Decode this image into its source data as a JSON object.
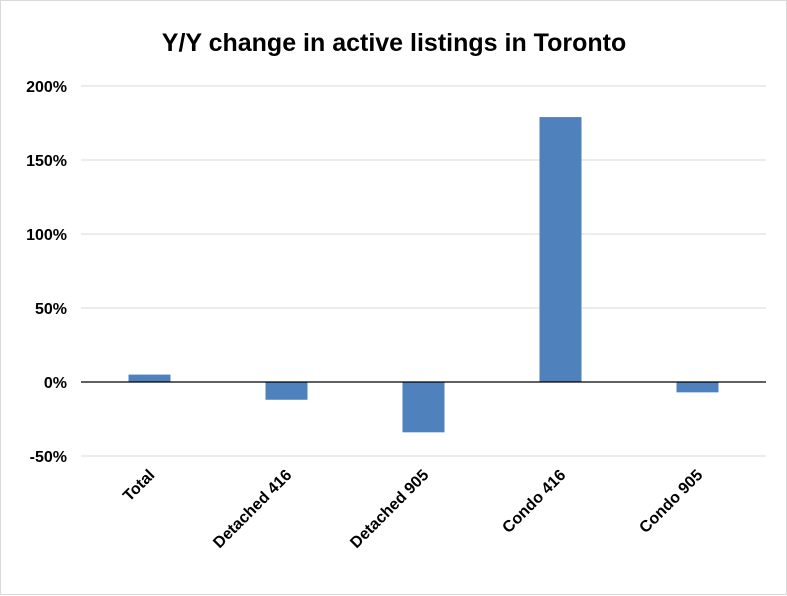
{
  "chart_data": {
    "type": "bar",
    "title": "Y/Y change in active listings in Toronto",
    "xlabel": "",
    "ylabel": "",
    "categories": [
      "Total",
      "Detached 416",
      "Detached 905",
      "Condo 416",
      "Condo 905"
    ],
    "values": [
      5,
      -12,
      -34,
      179,
      -7
    ],
    "unit": "%",
    "ylim": [
      -50,
      200
    ],
    "yticks": [
      -50,
      0,
      50,
      100,
      150,
      200
    ],
    "ytick_labels": [
      "-50%",
      "0%",
      "50%",
      "100%",
      "150%",
      "200%"
    ],
    "grid": true,
    "legend": "none",
    "bar_color": "#4f81bd",
    "grid_color": "#d9d9d9",
    "axis_color": "#000000"
  }
}
